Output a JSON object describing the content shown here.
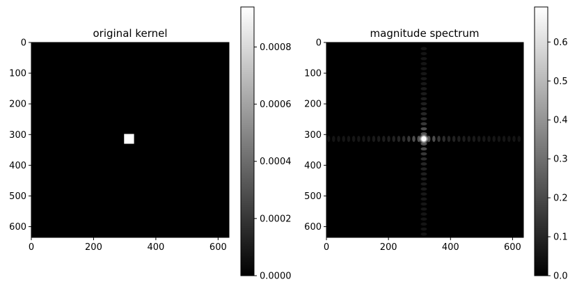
{
  "chart_data": [
    {
      "type": "heatmap",
      "title": "original kernel",
      "image_extent": {
        "x": [
          0,
          635
        ],
        "y": [
          0,
          635
        ]
      },
      "x_ticks": [
        0,
        200,
        400,
        600
      ],
      "y_ticks": [
        0,
        100,
        200,
        300,
        400,
        500,
        600
      ],
      "y_inverted": true,
      "colormap": "gray",
      "background_value": 0.0,
      "feature": {
        "shape": "square",
        "value": 0.00094,
        "x_range": [
          298,
          330
        ],
        "y_range": [
          298,
          330
        ]
      },
      "colorbar": {
        "range": [
          0,
          0.00094
        ],
        "ticks": [
          "0.0000",
          "0.0002",
          "0.0004",
          "0.0006",
          "0.0008"
        ]
      }
    },
    {
      "type": "heatmap",
      "title": "magnitude spectrum",
      "image_extent": {
        "x": [
          0,
          635
        ],
        "y": [
          0,
          635
        ]
      },
      "x_ticks": [
        0,
        200,
        400,
        600
      ],
      "y_ticks": [
        0,
        100,
        200,
        300,
        400,
        500,
        600
      ],
      "y_inverted": true,
      "colormap": "gray",
      "feature": {
        "shape": "sinc-cross",
        "center": [
          314,
          314
        ],
        "peak_value": 0.69
      },
      "colorbar": {
        "range": [
          0,
          0.69
        ],
        "ticks": [
          "0.0",
          "0.1",
          "0.2",
          "0.3",
          "0.4",
          "0.5",
          "0.6"
        ]
      }
    }
  ]
}
